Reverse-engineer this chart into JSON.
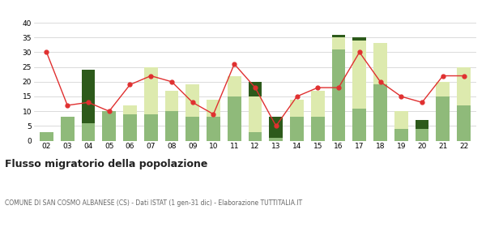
{
  "years": [
    "02",
    "03",
    "04",
    "05",
    "06",
    "07",
    "08",
    "09",
    "10",
    "11",
    "12",
    "13",
    "14",
    "15",
    "16",
    "17",
    "18",
    "19",
    "20",
    "21",
    "22"
  ],
  "iscritti_altri_comuni": [
    3,
    8,
    6,
    10,
    9,
    9,
    10,
    8,
    8,
    15,
    3,
    1,
    8,
    8,
    31,
    11,
    19,
    4,
    4,
    15,
    12
  ],
  "iscritti_estero": [
    0,
    0,
    0,
    0,
    3,
    16,
    7,
    11,
    6,
    7,
    12,
    0,
    6,
    9,
    4,
    23,
    14,
    6,
    0,
    5,
    13
  ],
  "iscritti_altri": [
    0,
    0,
    18,
    0,
    0,
    0,
    0,
    0,
    0,
    0,
    5,
    7,
    0,
    0,
    1,
    1,
    0,
    0,
    3,
    0,
    0
  ],
  "cancellati": [
    30,
    12,
    13,
    10,
    19,
    22,
    20,
    13,
    9,
    26,
    18,
    5,
    15,
    18,
    18,
    30,
    20,
    15,
    13,
    22,
    22
  ],
  "color_comuni": "#8fba7a",
  "color_estero": "#ddeaae",
  "color_altri": "#2d5a1b",
  "color_cancellati": "#e03030",
  "title": "Flusso migratorio della popolazione",
  "subtitle": "COMUNE DI SAN COSMO ALBANESE (CS) - Dati ISTAT (1 gen-31 dic) - Elaborazione TUTTITALIA.IT",
  "ylim": [
    0,
    40
  ],
  "yticks": [
    0,
    5,
    10,
    15,
    20,
    25,
    30,
    35,
    40
  ],
  "bg_color": "#ffffff",
  "grid_color": "#cccccc"
}
